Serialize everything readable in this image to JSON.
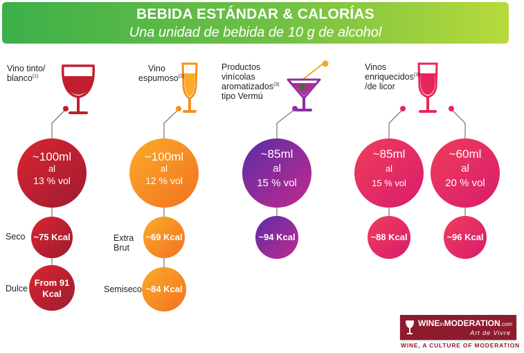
{
  "header": {
    "title": "BEBIDA ESTÁNDAR & CALORÍAS",
    "subtitle": "Una unidad de bebida de 10 g de alcohol"
  },
  "categories": [
    {
      "label_lines": [
        "Vino tinto/",
        "blanco"
      ],
      "ref": "(1)",
      "icon": "wine-glass-icon",
      "color": "#c01f2e",
      "serving": {
        "volume": "~100ml",
        "prep": "al",
        "abv": "13 % vol"
      },
      "kcal": [
        {
          "side_label": "Seco",
          "text": "~75 Kcal"
        },
        {
          "side_label": "Dulce",
          "text": "From 91 Kcal"
        }
      ]
    },
    {
      "label_lines": [
        "Vino",
        "espumoso"
      ],
      "ref": "(2)",
      "icon": "champagne-flute-icon",
      "color": "#f78f1e",
      "serving": {
        "volume": "~100ml",
        "prep": "al",
        "abv": "12 % vol"
      },
      "kcal": [
        {
          "side_label": "Extra Brut",
          "text": "~69 Kcal"
        },
        {
          "side_label": "Semiseco",
          "text": "~84 Kcal"
        }
      ]
    },
    {
      "label_lines": [
        "Productos",
        "vinícolas",
        "aromatizados",
        "tipo Vermú"
      ],
      "ref": "(3)",
      "icon": "martini-glass-icon",
      "color": "#8b2fa0",
      "serving": {
        "volume": "~85ml",
        "prep": "al",
        "abv": "15 % vol"
      },
      "kcal": [
        {
          "text": "~94 Kcal"
        }
      ]
    },
    {
      "label_lines": [
        "Vinos",
        "enriquecidos",
        "/de licor"
      ],
      "ref": "(3)",
      "icon": "port-glass-icon",
      "color": "#e8255a",
      "servings": [
        {
          "volume": "~85ml",
          "prep": "al",
          "abv": "15 % vol",
          "kcal": "~88 Kcal"
        },
        {
          "volume": "~60ml",
          "prep": "al",
          "abv": "20 % vol",
          "kcal": "~96 Kcal"
        }
      ]
    }
  ],
  "logo": {
    "brand_wine": "WINE",
    "brand_in": "in",
    "brand_moderation": "MODERATION",
    "brand_domain": ".com",
    "motto": "Art de Vivre",
    "tagline": "WINE, A CULTURE OF MODERATION"
  }
}
